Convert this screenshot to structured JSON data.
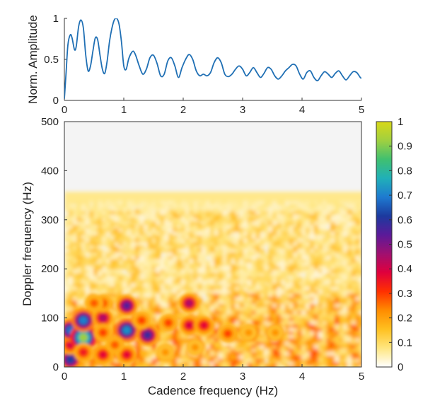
{
  "chart_data": [
    {
      "type": "line",
      "title": "",
      "xlabel": "",
      "ylabel": "Norm. Amplitude",
      "xlim": [
        0,
        5
      ],
      "ylim": [
        0,
        1
      ],
      "x_ticks": [
        "0",
        "1",
        "2",
        "3",
        "4",
        "5"
      ],
      "y_ticks": [
        "0",
        "0.5",
        "1"
      ],
      "grid": false,
      "series": [
        {
          "color": "#1f6fb4",
          "x": [
            0,
            0.03,
            0.06,
            0.1,
            0.13,
            0.17,
            0.2,
            0.24,
            0.28,
            0.32,
            0.36,
            0.4,
            0.44,
            0.48,
            0.52,
            0.56,
            0.6,
            0.64,
            0.68,
            0.72,
            0.76,
            0.8,
            0.84,
            0.88,
            0.92,
            0.96,
            1.0,
            1.04,
            1.08,
            1.12,
            1.16,
            1.2,
            1.26,
            1.32,
            1.38,
            1.44,
            1.5,
            1.56,
            1.62,
            1.68,
            1.74,
            1.8,
            1.86,
            1.92,
            1.98,
            2.04,
            2.1,
            2.16,
            2.22,
            2.28,
            2.34,
            2.4,
            2.46,
            2.52,
            2.58,
            2.64,
            2.7,
            2.76,
            2.82,
            2.88,
            2.94,
            3.0,
            3.06,
            3.12,
            3.18,
            3.24,
            3.3,
            3.36,
            3.42,
            3.48,
            3.54,
            3.6,
            3.66,
            3.72,
            3.78,
            3.84,
            3.9,
            3.96,
            4.02,
            4.08,
            4.14,
            4.2,
            4.26,
            4.32,
            4.38,
            4.44,
            4.5,
            4.56,
            4.62,
            4.68,
            4.74,
            4.8,
            4.86,
            4.92,
            4.98,
            5.0
          ],
          "y": [
            0.02,
            0.35,
            0.68,
            0.8,
            0.76,
            0.62,
            0.66,
            0.9,
            0.98,
            0.88,
            0.55,
            0.36,
            0.42,
            0.6,
            0.76,
            0.74,
            0.55,
            0.38,
            0.33,
            0.48,
            0.72,
            0.88,
            0.98,
            1.0,
            0.93,
            0.72,
            0.42,
            0.38,
            0.5,
            0.57,
            0.6,
            0.55,
            0.42,
            0.32,
            0.38,
            0.52,
            0.55,
            0.45,
            0.3,
            0.32,
            0.48,
            0.52,
            0.42,
            0.28,
            0.4,
            0.5,
            0.56,
            0.5,
            0.36,
            0.3,
            0.32,
            0.3,
            0.34,
            0.46,
            0.52,
            0.46,
            0.32,
            0.29,
            0.32,
            0.38,
            0.42,
            0.38,
            0.3,
            0.34,
            0.4,
            0.34,
            0.28,
            0.33,
            0.4,
            0.38,
            0.3,
            0.26,
            0.3,
            0.36,
            0.4,
            0.44,
            0.42,
            0.32,
            0.26,
            0.34,
            0.36,
            0.28,
            0.24,
            0.3,
            0.35,
            0.32,
            0.28,
            0.33,
            0.36,
            0.3,
            0.25,
            0.3,
            0.35,
            0.34,
            0.28,
            0.27
          ]
        }
      ]
    },
    {
      "type": "heatmap",
      "title": "",
      "xlabel": "Cadence frequency (Hz)",
      "ylabel": "Doppler frequency (Hz)",
      "xlim": [
        0,
        5
      ],
      "ylim": [
        0,
        500
      ],
      "x_ticks": [
        "0",
        "1",
        "2",
        "3",
        "4",
        "5"
      ],
      "y_ticks": [
        "0",
        "100",
        "200",
        "300",
        "400",
        "500"
      ],
      "background": "#f4f4f4",
      "colorbar": {
        "ticks": [
          "0",
          "0.1",
          "0.2",
          "0.3",
          "0.4",
          "0.5",
          "0.6",
          "0.7",
          "0.8",
          "0.9",
          "1"
        ],
        "range": [
          0,
          1
        ],
        "colors": [
          "#ffffff",
          "#ffe680",
          "#ffc020",
          "#ff8c00",
          "#ff3000",
          "#e0003c",
          "#a01070",
          "#5b1a99",
          "#1c3a9e",
          "#1e7ad0",
          "#20b0b8",
          "#40c070",
          "#a0d040",
          "#d8d818"
        ]
      },
      "blobs": [
        {
          "x": 0.1,
          "y": 15,
          "v": 0.62
        },
        {
          "x": 0.1,
          "y": 45,
          "v": 0.4
        },
        {
          "x": 0.1,
          "y": 75,
          "v": 0.68
        },
        {
          "x": 0.32,
          "y": 60,
          "v": 0.92
        },
        {
          "x": 0.32,
          "y": 95,
          "v": 0.7
        },
        {
          "x": 0.32,
          "y": 30,
          "v": 0.35
        },
        {
          "x": 0.65,
          "y": 100,
          "v": 0.45
        },
        {
          "x": 0.65,
          "y": 25,
          "v": 0.38
        },
        {
          "x": 0.65,
          "y": 70,
          "v": 0.3
        },
        {
          "x": 0.65,
          "y": 130,
          "v": 0.3
        },
        {
          "x": 1.05,
          "y": 75,
          "v": 0.72
        },
        {
          "x": 1.05,
          "y": 125,
          "v": 0.55
        },
        {
          "x": 1.05,
          "y": 25,
          "v": 0.38
        },
        {
          "x": 1.4,
          "y": 65,
          "v": 0.58
        },
        {
          "x": 1.3,
          "y": 95,
          "v": 0.3
        },
        {
          "x": 1.75,
          "y": 90,
          "v": 0.3
        },
        {
          "x": 2.1,
          "y": 130,
          "v": 0.45
        },
        {
          "x": 2.1,
          "y": 85,
          "v": 0.4
        },
        {
          "x": 2.35,
          "y": 85,
          "v": 0.38
        },
        {
          "x": 2.75,
          "y": 68,
          "v": 0.3
        },
        {
          "x": 2.2,
          "y": 40,
          "v": 0.22
        },
        {
          "x": 3.1,
          "y": 70,
          "v": 0.22
        },
        {
          "x": 3.55,
          "y": 70,
          "v": 0.22
        },
        {
          "x": 1.7,
          "y": 30,
          "v": 0.22
        },
        {
          "x": 0.85,
          "y": 45,
          "v": 0.28
        },
        {
          "x": 0.5,
          "y": 130,
          "v": 0.28
        }
      ]
    }
  ]
}
